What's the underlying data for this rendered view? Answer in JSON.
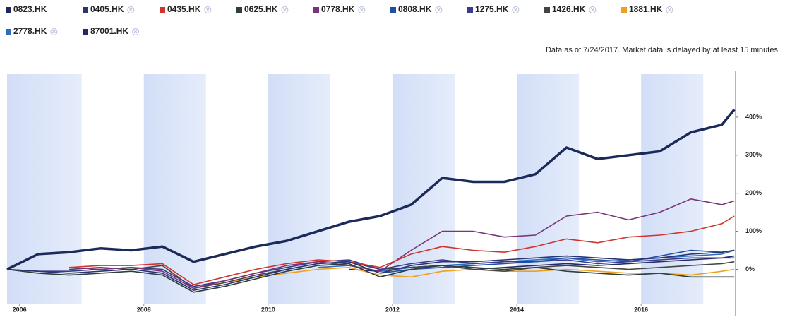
{
  "chart_data": {
    "type": "line",
    "note": "Data as of 7/24/2017. Market data is delayed by at least 15 minutes.",
    "x": [
      2005.8,
      2006.3,
      2006.8,
      2007.3,
      2007.8,
      2008.3,
      2008.8,
      2009.3,
      2009.8,
      2010.3,
      2010.8,
      2011.3,
      2011.8,
      2012.3,
      2012.8,
      2013.3,
      2013.8,
      2014.3,
      2014.8,
      2015.3,
      2015.8,
      2016.3,
      2016.8,
      2017.3,
      2017.5
    ],
    "series": [
      {
        "name": "0823.HK",
        "color": "#1c2a5a",
        "line_width": 3.5,
        "values": [
          0,
          40,
          45,
          55,
          50,
          60,
          20,
          40,
          60,
          75,
          100,
          125,
          140,
          170,
          240,
          230,
          230,
          250,
          320,
          290,
          300,
          310,
          360,
          380,
          420
        ]
      },
      {
        "name": "0405.HK",
        "color": "#2a3470",
        "values": [
          0,
          -5,
          -10,
          -5,
          0,
          -10,
          -55,
          -40,
          -20,
          0,
          15,
          20,
          -10,
          10,
          20,
          20,
          25,
          30,
          35,
          30,
          25,
          30,
          40,
          45,
          50
        ]
      },
      {
        "name": "0435.HK",
        "color": "#d0342c",
        "values": [
          null,
          null,
          5,
          10,
          10,
          15,
          -40,
          -20,
          0,
          15,
          25,
          20,
          5,
          40,
          60,
          50,
          45,
          60,
          80,
          70,
          85,
          90,
          100,
          120,
          140
        ]
      },
      {
        "name": "0625.HK",
        "color": "#2f3f3a",
        "values": [
          0,
          -10,
          -15,
          -10,
          -5,
          -15,
          -60,
          -45,
          -25,
          -5,
          10,
          15,
          -20,
          0,
          10,
          5,
          0,
          5,
          -5,
          -10,
          -15,
          -10,
          -20,
          -20,
          -20
        ]
      },
      {
        "name": "0778.HK",
        "color": "#7a3478",
        "values": [
          null,
          null,
          5,
          0,
          5,
          -5,
          -50,
          -30,
          -10,
          10,
          20,
          10,
          -5,
          50,
          100,
          100,
          85,
          90,
          140,
          150,
          130,
          150,
          185,
          170,
          180
        ]
      },
      {
        "name": "0808.HK",
        "color": "#1f4fa8",
        "values": [
          null,
          null,
          null,
          null,
          null,
          null,
          null,
          null,
          null,
          null,
          null,
          null,
          -10,
          0,
          5,
          10,
          15,
          20,
          30,
          25,
          20,
          35,
          50,
          45,
          50
        ]
      },
      {
        "name": "1275.HK",
        "color": "#3b3a8c",
        "values": [
          0,
          -5,
          -5,
          0,
          5,
          0,
          -45,
          -30,
          -10,
          5,
          20,
          25,
          0,
          15,
          25,
          15,
          20,
          20,
          25,
          15,
          20,
          25,
          30,
          30,
          30
        ]
      },
      {
        "name": "1426.HK",
        "color": "#444444",
        "values": [
          null,
          null,
          0,
          5,
          0,
          10,
          -50,
          -35,
          -15,
          0,
          15,
          20,
          0,
          5,
          10,
          0,
          -5,
          5,
          10,
          5,
          0,
          5,
          10,
          15,
          20
        ]
      },
      {
        "name": "1881.HK",
        "color": "#f0a020",
        "values": [
          null,
          null,
          null,
          null,
          null,
          10,
          -50,
          -35,
          -20,
          -10,
          0,
          5,
          -15,
          -20,
          -5,
          0,
          -5,
          -5,
          0,
          -5,
          -10,
          -10,
          -15,
          -5,
          0
        ]
      },
      {
        "name": "2778.HK",
        "color": "#2f6cc0",
        "values": [
          null,
          null,
          null,
          null,
          null,
          null,
          null,
          null,
          null,
          null,
          5,
          10,
          -5,
          5,
          10,
          15,
          20,
          25,
          30,
          20,
          25,
          30,
          35,
          40,
          50
        ]
      },
      {
        "name": "87001.HK",
        "color": "#232a66",
        "values": [
          null,
          null,
          null,
          null,
          null,
          null,
          null,
          null,
          null,
          null,
          null,
          0,
          -5,
          5,
          10,
          0,
          5,
          10,
          15,
          10,
          15,
          20,
          25,
          30,
          35
        ]
      }
    ],
    "xlim": [
      2005.8,
      2017.52
    ],
    "xticks": [
      2006,
      2008,
      2010,
      2012,
      2014,
      2016
    ],
    "ylim": [
      -90,
      513
    ],
    "yticks": [
      {
        "value": 0,
        "label": "0%"
      },
      {
        "value": 100,
        "label": "100%"
      },
      {
        "value": 200,
        "label": "200%"
      },
      {
        "value": 300,
        "label": "300%"
      },
      {
        "value": 400,
        "label": "400%"
      }
    ],
    "grid": false
  }
}
